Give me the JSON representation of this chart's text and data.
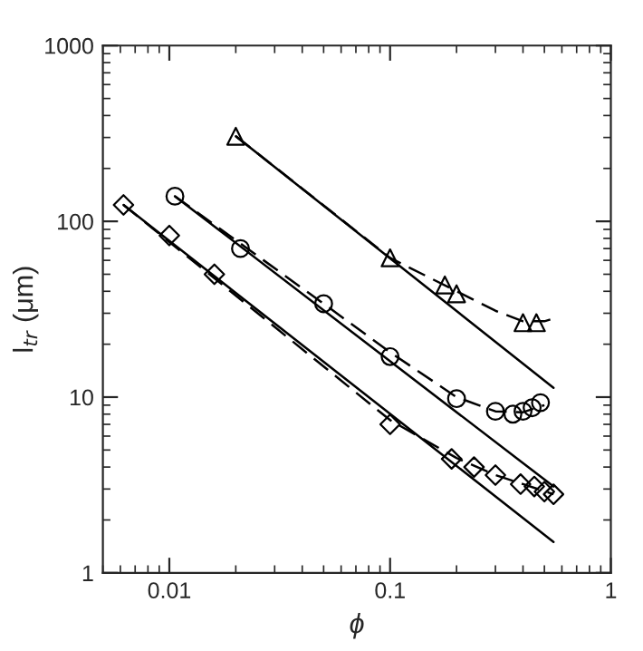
{
  "chart_data": {
    "type": "scatter",
    "xlabel": "ϕ",
    "ylabel": "l$_{tr}$ (μm)",
    "log": "xy",
    "xlim": [
      0.005,
      1
    ],
    "ylim": [
      1,
      1000
    ],
    "xticks": [
      0.01,
      0.1,
      1
    ],
    "yticks": [
      1,
      10,
      100,
      1000
    ],
    "grid": false,
    "legend": false,
    "series": [
      {
        "marker": "triangle",
        "color": "#000000",
        "x": [
          0.02,
          0.1,
          0.177,
          0.2,
          0.4,
          0.46
        ],
        "values": [
          305,
          62,
          43.5,
          38.7,
          26.5,
          26.5
        ]
      },
      {
        "marker": "circle",
        "color": "#000000",
        "x": [
          0.0106,
          0.021,
          0.05,
          0.1,
          0.2,
          0.3,
          0.36,
          0.4,
          0.44,
          0.48
        ],
        "values": [
          139,
          70,
          34,
          17,
          9.8,
          8.3,
          8,
          8.3,
          8.7,
          9.3
        ]
      },
      {
        "marker": "diamond",
        "color": "#000000",
        "x": [
          0.0062,
          0.01,
          0.016,
          0.1,
          0.19,
          0.24,
          0.3,
          0.39,
          0.45,
          0.5,
          0.55
        ],
        "values": [
          124,
          83,
          50,
          7.0,
          4.45,
          4.0,
          3.6,
          3.2,
          3.1,
          2.9,
          2.8
        ]
      },
      {
        "type": "line",
        "line_style": "solid",
        "color": "#000000",
        "x": [
          0.02,
          0.55
        ],
        "values": [
          305,
          11.3
        ]
      },
      {
        "type": "line",
        "line_style": "solid",
        "color": "#000000",
        "x": [
          0.0106,
          0.55
        ],
        "values": [
          139,
          3.1
        ]
      },
      {
        "type": "line",
        "line_style": "solid",
        "color": "#000000",
        "x": [
          0.0062,
          0.55
        ],
        "values": [
          124,
          1.5
        ]
      },
      {
        "type": "line",
        "line_style": "dashed",
        "color": "#000000",
        "x": [
          0.02,
          0.1,
          0.2,
          0.3,
          0.4,
          0.5,
          0.55
        ],
        "values": [
          305,
          62,
          40,
          31,
          27,
          27,
          28
        ]
      },
      {
        "type": "line",
        "line_style": "dashed",
        "color": "#000000",
        "x": [
          0.0106,
          0.05,
          0.1,
          0.2,
          0.3,
          0.4,
          0.5
        ],
        "values": [
          139,
          34,
          18,
          10,
          8.3,
          8.2,
          9
        ]
      },
      {
        "type": "line",
        "line_style": "dashed",
        "color": "#000000",
        "x": [
          0.0062,
          0.1,
          0.2,
          0.3,
          0.4,
          0.55
        ],
        "values": [
          124,
          7.4,
          4.5,
          3.6,
          3.2,
          2.8
        ]
      }
    ]
  }
}
